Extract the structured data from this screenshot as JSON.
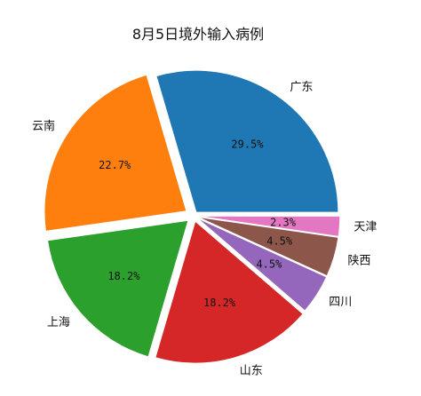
{
  "chart_data": {
    "type": "pie",
    "title": "8月5日境外输入病例",
    "start_angle_deg": 0,
    "direction": "counterclockwise",
    "slices": [
      {
        "label": "广东",
        "value": 29.5,
        "pct_label": "29.5%",
        "color": "#1f77b4",
        "explode": 0.03
      },
      {
        "label": "云南",
        "value": 22.7,
        "pct_label": "22.7%",
        "color": "#ff7f0e",
        "explode": 0.06
      },
      {
        "label": "上海",
        "value": 18.2,
        "pct_label": "18.2%",
        "color": "#2ca02c",
        "explode": 0.05
      },
      {
        "label": "山东",
        "value": 18.2,
        "pct_label": "18.2%",
        "color": "#d62728",
        "explode": 0.04
      },
      {
        "label": "四川",
        "value": 4.5,
        "pct_label": "4.5%",
        "color": "#9467bd",
        "explode": 0.03
      },
      {
        "label": "陕西",
        "value": 4.5,
        "pct_label": "4.5%",
        "color": "#8c564b",
        "explode": 0.03
      },
      {
        "label": "天津",
        "value": 2.3,
        "pct_label": "2.3%",
        "color": "#e377c2",
        "explode": 0.03
      }
    ]
  }
}
